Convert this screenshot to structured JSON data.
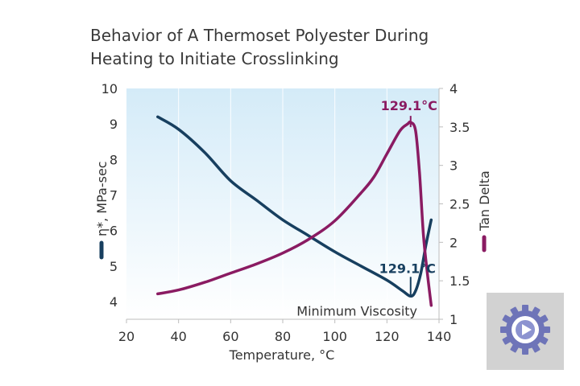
{
  "chart_data": {
    "type": "line",
    "title": "Behavior of A Thermoset Polyester During Heating to Initiate Crosslinking",
    "xlabel": "Temperature, °C",
    "ylabel": "η*, MPa-sec",
    "y2label": "Tan Delta",
    "xlim": [
      20,
      140
    ],
    "ylim": [
      3.5,
      10
    ],
    "y2lim": [
      1,
      4
    ],
    "xticks": [
      "20",
      "40",
      "60",
      "80",
      "100",
      "120",
      "140"
    ],
    "yticks": [
      "4",
      "5",
      "6",
      "7",
      "8",
      "9",
      "10"
    ],
    "y2ticks": [
      "1",
      "1.5",
      "2",
      "2.5",
      "3",
      "3.5",
      "4"
    ],
    "legend": "axis-labels",
    "series": [
      {
        "axis": "left",
        "color": "#173f5f",
        "x": [
          32,
          40,
          50,
          60,
          70,
          80,
          90,
          100,
          110,
          120,
          126,
          129.1,
          131,
          133,
          135,
          137
        ],
        "y": [
          9.2,
          8.85,
          8.2,
          7.4,
          6.85,
          6.3,
          5.85,
          5.4,
          5.0,
          4.6,
          4.3,
          4.15,
          4.3,
          4.8,
          5.6,
          6.3
        ]
      },
      {
        "axis": "right",
        "color": "#8a1b62",
        "x": [
          32,
          40,
          50,
          60,
          70,
          80,
          90,
          100,
          110,
          115,
          120,
          125,
          128,
          129.1,
          131,
          132.5,
          134,
          135.5,
          137
        ],
        "y": [
          1.33,
          1.38,
          1.48,
          1.6,
          1.72,
          1.86,
          2.04,
          2.28,
          2.64,
          2.85,
          3.15,
          3.45,
          3.54,
          3.56,
          3.45,
          2.9,
          2.1,
          1.6,
          1.18
        ]
      }
    ],
    "annotations": [
      {
        "text": "129.1°C",
        "series": 1,
        "x": 129.1,
        "y": 3.56
      },
      {
        "text": "129.1°C",
        "series": 0,
        "x": 129.1,
        "y": 4.15
      },
      {
        "text": "Minimum Viscosity",
        "series": 0,
        "x": 129.1,
        "y": 4.15
      }
    ],
    "background_gradient": [
      "#d4ebf8",
      "#ffffff"
    ]
  }
}
